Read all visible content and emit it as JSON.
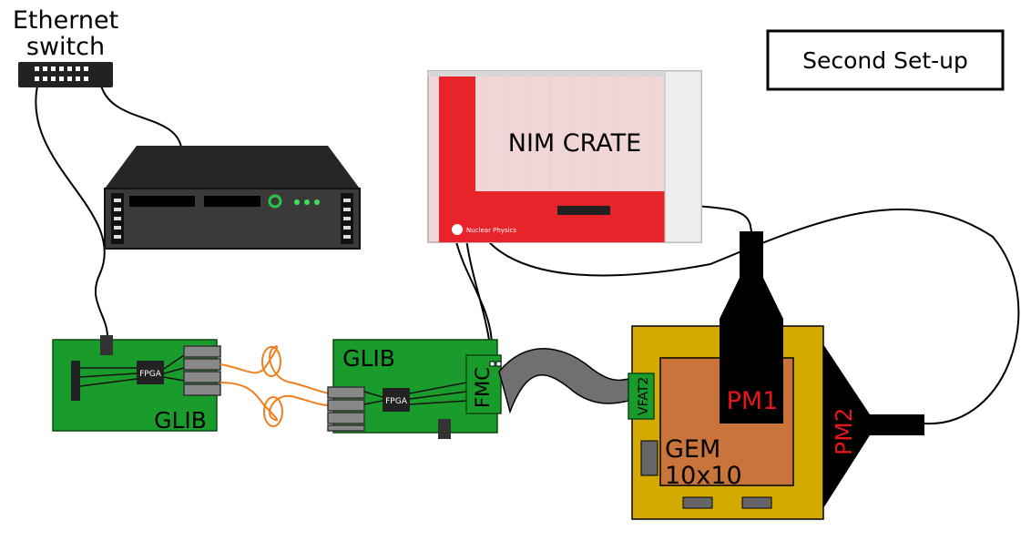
{
  "labels": {
    "ethernet_line1": "Ethernet",
    "ethernet_line2": "switch",
    "setup_title": "Second Set-up",
    "nim_crate": "NIM CRATE",
    "glib_left_chip": "FPGA",
    "glib_left": "GLIB",
    "glib_mid": "GLIB",
    "glib_mid_chip": "FPGA",
    "fmc": "FMC",
    "vfat": "VFAT2",
    "gem_line1": "GEM",
    "gem_line2": "10x10",
    "pm1": "PM1",
    "pm2": "PM2",
    "crate_brand": "Nuclear Physics"
  },
  "colors": {
    "board_green": "#1a9c2c",
    "gem_gold": "#d4aa00",
    "gem_copper": "#c8743a",
    "fiber_orange": "#f07f1e",
    "crate_red": "#e8232a",
    "pm_label_red": "#e8141c",
    "pm_body": "#000000",
    "cable_grey": "#707070",
    "chip_dark": "#222222"
  }
}
